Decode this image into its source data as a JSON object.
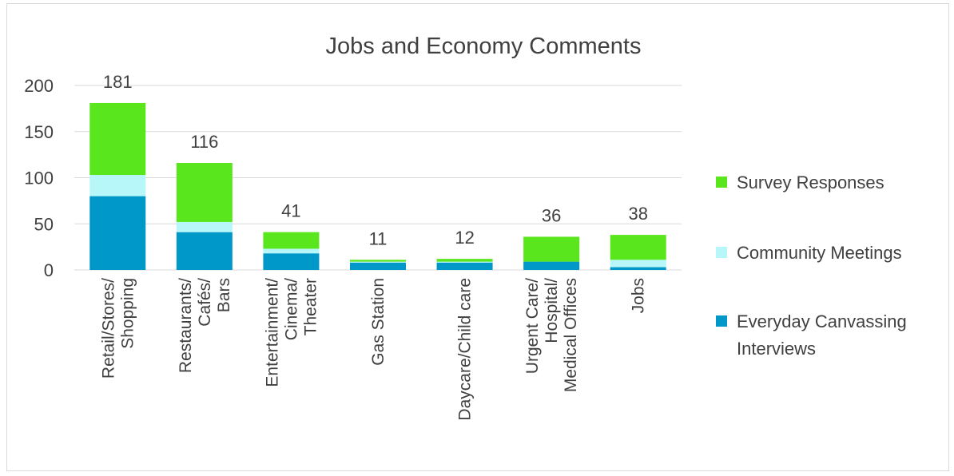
{
  "chart_data": {
    "type": "bar",
    "stacked": true,
    "title": "Jobs and Economy Comments",
    "categories": [
      [
        "Retail/Stores/",
        "Shopping"
      ],
      [
        "Restaurants/",
        "Cafés/",
        "Bars"
      ],
      [
        "Entertainment/",
        "Cinema/",
        "Theater"
      ],
      [
        "Gas Station"
      ],
      [
        "Daycare/Child care"
      ],
      [
        "Urgent Care/",
        "Hospital/",
        "Medical Offices"
      ],
      [
        "Jobs"
      ]
    ],
    "series": [
      {
        "name": "Everyday Canvassing Interviews",
        "color": "#0098c9",
        "values": [
          80,
          41,
          18,
          8,
          8,
          9,
          3
        ]
      },
      {
        "name": "Community Meetings",
        "color": "#b7f7fa",
        "values": [
          23,
          11,
          5,
          1,
          1,
          0,
          8
        ]
      },
      {
        "name": "Survey Responses",
        "color": "#5ae61d",
        "values": [
          78,
          64,
          18,
          2,
          3,
          27,
          27
        ]
      }
    ],
    "totals": [
      181,
      116,
      41,
      11,
      12,
      36,
      38
    ],
    "ylim": [
      0,
      200
    ],
    "yticks": [
      0,
      50,
      100,
      150,
      200
    ],
    "grid": true,
    "legend": "right"
  }
}
